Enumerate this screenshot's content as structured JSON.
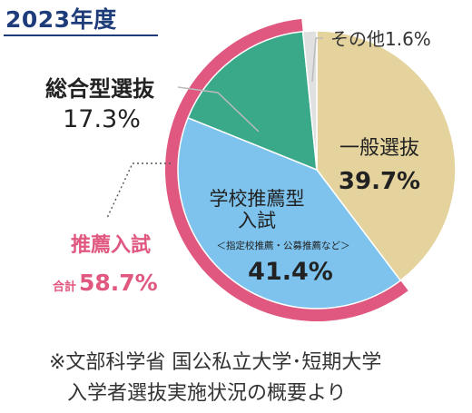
{
  "title": "2023年度",
  "chart_data": {
    "type": "pie",
    "slices": [
      {
        "label": "一般選抜",
        "value": 39.7,
        "value_text": "39.7%",
        "color": "#e5d39e"
      },
      {
        "label": "学校推薦型入試",
        "label_lines": [
          "学校推薦型",
          "入試"
        ],
        "sublabel": "＜指定校推薦・公募推薦など＞",
        "value": 41.4,
        "value_text": "41.4%",
        "color": "#7dc3ee"
      },
      {
        "label": "総合型選抜",
        "value": 17.3,
        "value_text": "17.3%",
        "color": "#3aa98a"
      },
      {
        "label": "その他",
        "value": 1.6,
        "value_text": "その他1.6%",
        "color": "#e0e0e0"
      }
    ],
    "group": {
      "label": "推薦入試",
      "total_label": "合計",
      "total_value": "58.7%",
      "value": 58.7,
      "color": "#e0577f"
    }
  },
  "source": {
    "line1": "※文部科学省 国公私立大学･短期大学",
    "line2": "入学者選抜実施状況の概要より"
  }
}
